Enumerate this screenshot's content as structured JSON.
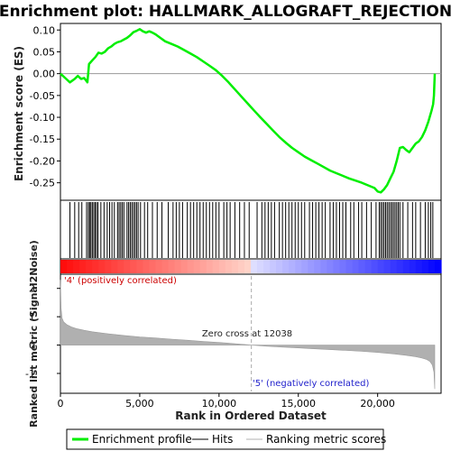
{
  "chart_data": {
    "type": "line",
    "title": "Enrichment plot: HALLMARK_ALLOGRAFT_REJECTION",
    "es_panel": {
      "ylabel": "Enrichment score (ES)",
      "ylim": [
        -0.29,
        0.115
      ],
      "yticks": [
        0.1,
        0.05,
        0.0,
        -0.05,
        -0.1,
        -0.15,
        -0.2,
        -0.25
      ],
      "ytick_labels": [
        "0.10",
        "0.05",
        "0.00",
        "-0.05",
        "-0.10",
        "-0.15",
        "-0.20",
        "-0.25"
      ],
      "series": [
        {
          "name": "Enrichment profile",
          "color": "#00ee00",
          "x": [
            0,
            300,
            600,
            900,
            1100,
            1300,
            1500,
            1700,
            1800,
            2000,
            2200,
            2400,
            2600,
            2800,
            3000,
            3200,
            3400,
            3600,
            3800,
            4000,
            4200,
            4400,
            4600,
            4800,
            5000,
            5200,
            5400,
            5600,
            5800,
            6000,
            6300,
            6600,
            7000,
            7400,
            7800,
            8200,
            8600,
            9000,
            9400,
            9800,
            10200,
            10600,
            11000,
            11400,
            11800,
            12200,
            12600,
            13000,
            13400,
            13800,
            14200,
            14600,
            15000,
            15400,
            15800,
            16200,
            16600,
            17000,
            17400,
            17800,
            18200,
            18600,
            19000,
            19400,
            19800,
            20000,
            20200,
            20400,
            20600,
            20800,
            21000,
            21200,
            21400,
            21600,
            21800,
            22000,
            22200,
            22400,
            22600,
            22800,
            23000,
            23200,
            23400,
            23500,
            23550,
            23600
          ],
          "y": [
            0.0,
            -0.01,
            -0.02,
            -0.012,
            -0.005,
            -0.012,
            -0.01,
            -0.02,
            0.022,
            0.03,
            0.038,
            0.048,
            0.046,
            0.05,
            0.058,
            0.062,
            0.068,
            0.072,
            0.074,
            0.078,
            0.082,
            0.088,
            0.095,
            0.098,
            0.102,
            0.097,
            0.094,
            0.097,
            0.094,
            0.09,
            0.082,
            0.074,
            0.068,
            0.062,
            0.054,
            0.046,
            0.038,
            0.028,
            0.018,
            0.008,
            -0.005,
            -0.02,
            -0.036,
            -0.052,
            -0.068,
            -0.084,
            -0.1,
            -0.115,
            -0.13,
            -0.145,
            -0.158,
            -0.17,
            -0.18,
            -0.19,
            -0.198,
            -0.206,
            -0.214,
            -0.222,
            -0.228,
            -0.234,
            -0.24,
            -0.245,
            -0.25,
            -0.256,
            -0.262,
            -0.27,
            -0.272,
            -0.265,
            -0.255,
            -0.24,
            -0.225,
            -0.2,
            -0.17,
            -0.168,
            -0.175,
            -0.18,
            -0.17,
            -0.16,
            -0.155,
            -0.145,
            -0.13,
            -0.11,
            -0.085,
            -0.07,
            -0.05,
            0.0
          ]
        }
      ]
    },
    "hits_panel": {
      "legend_name": "Hits",
      "positions": [
        600,
        900,
        1150,
        1350,
        1650,
        1760,
        1840,
        1920,
        2010,
        2100,
        2190,
        2280,
        2370,
        2550,
        2750,
        2950,
        3100,
        3250,
        3400,
        3600,
        3700,
        3800,
        3900,
        4000,
        4200,
        4300,
        4400,
        4500,
        4600,
        4700,
        4800,
        4900,
        5050,
        5300,
        5500,
        5800,
        6100,
        6400,
        6800,
        7100,
        7300,
        7500,
        7700,
        8000,
        8200,
        8400,
        8600,
        8800,
        9000,
        9200,
        9400,
        9600,
        9800,
        10000,
        10300,
        10500,
        10700,
        11000,
        11300,
        11600,
        11900,
        12400,
        12700,
        12900,
        13100,
        13300,
        13500,
        13800,
        14000,
        14200,
        14400,
        14600,
        14800,
        15000,
        15200,
        15400,
        15700,
        15900,
        16100,
        16300,
        16500,
        16700,
        17000,
        17200,
        17400,
        17600,
        17800,
        18000,
        18300,
        18500,
        18800,
        19000,
        19300,
        19600,
        19900,
        20100,
        20200,
        20300,
        20400,
        20500,
        20600,
        20700,
        20800,
        20900,
        21000,
        21100,
        21200,
        21300,
        21400,
        21600,
        21900,
        22200,
        22400,
        22700,
        23000,
        23200,
        23350,
        23480
      ]
    },
    "rank_panel": {
      "legend_name": "Ranking metric scores",
      "ylabel": "Ranked list metric (Signal2Noise)",
      "xlabel": "Rank in Ordered Dataset",
      "xlim": [
        0,
        24000
      ],
      "ylim": [
        -1.7,
        2.5
      ],
      "yticks": [
        2,
        1,
        0,
        -1
      ],
      "ytick_labels": [
        "2",
        "1",
        "0",
        "-1"
      ],
      "xticks": [
        0,
        5000,
        10000,
        15000,
        20000
      ],
      "xtick_labels": [
        "0",
        "5,000",
        "10,000",
        "15,000",
        "20,000"
      ],
      "x": [
        0,
        40,
        100,
        200,
        400,
        700,
        1000,
        1500,
        2000,
        3000,
        4000,
        5000,
        6000,
        7000,
        8000,
        9000,
        10000,
        11000,
        12038,
        13000,
        14000,
        15000,
        16000,
        17000,
        18000,
        19000,
        20000,
        21000,
        21800,
        22400,
        22800,
        23100,
        23300,
        23450,
        23550,
        23600
      ],
      "y": [
        2.3,
        1.3,
        0.95,
        0.82,
        0.72,
        0.64,
        0.58,
        0.52,
        0.47,
        0.4,
        0.34,
        0.29,
        0.25,
        0.21,
        0.17,
        0.13,
        0.09,
        0.05,
        0.0,
        -0.04,
        -0.07,
        -0.1,
        -0.13,
        -0.16,
        -0.19,
        -0.22,
        -0.26,
        -0.31,
        -0.36,
        -0.41,
        -0.46,
        -0.51,
        -0.58,
        -0.7,
        -0.95,
        -1.55
      ],
      "zero_cross_label": "Zero cross at 12038",
      "zero_cross_x": 12038,
      "pos_label": "'4' (positively correlated)",
      "neg_label": "'5' (negatively correlated)"
    },
    "legend": {
      "items": [
        "Enrichment profile",
        "Hits",
        "Ranking metric scores"
      ]
    },
    "colors": {
      "profile": "#00ee00",
      "hits": "#000000",
      "metric_fill": "#b0b0b0",
      "pos": "#ff0000",
      "neg": "#0000ff",
      "pos_label_color": "#cc0000",
      "neg_label_color": "#2222cc"
    }
  }
}
